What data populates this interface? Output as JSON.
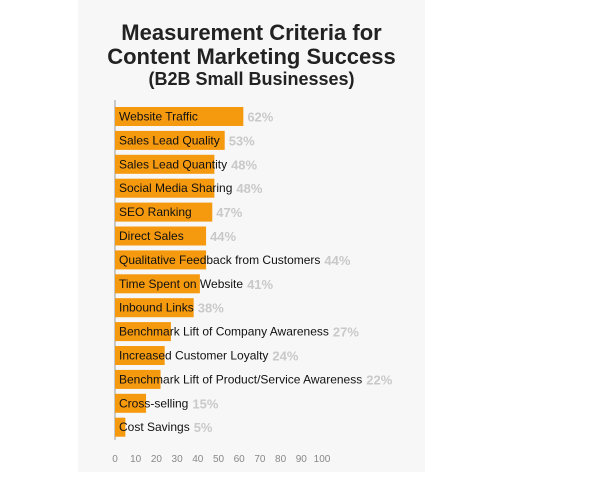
{
  "chart_data": {
    "type": "bar",
    "orientation": "horizontal",
    "title": "Measurement Criteria for Content Marketing Success",
    "title_lines": [
      "Measurement Criteria for",
      "Content Marketing Success"
    ],
    "subtitle": "(B2B Small Businesses)",
    "categories": [
      "Website Traffic",
      "Sales Lead Quality",
      "Sales Lead Quantity",
      "Social Media Sharing",
      "SEO Ranking",
      "Direct Sales",
      "Qualitative Feedback from Customers",
      "Time Spent on Website",
      "Inbound Links",
      "Benchmark Lift of Company Awareness",
      "Increased Customer Loyalty",
      "Benchmark Lift of Product/Service Awareness",
      "Cross-selling",
      "Cost Savings"
    ],
    "values": [
      62,
      53,
      48,
      48,
      47,
      44,
      44,
      41,
      38,
      27,
      24,
      22,
      15,
      5
    ],
    "value_labels": [
      "62%",
      "53%",
      "48%",
      "48%",
      "47%",
      "44%",
      "44%",
      "41%",
      "38%",
      "27%",
      "24%",
      "22%",
      "15%",
      "5%"
    ],
    "xlim": [
      0,
      100
    ],
    "xticks": [
      "0",
      "10",
      "20",
      "30",
      "40",
      "50",
      "60",
      "70",
      "80",
      "90",
      "100"
    ],
    "grid": false,
    "colors": {
      "bar": "#f5990f",
      "value_label": "#c9c9c9",
      "axis": "#999999"
    }
  }
}
